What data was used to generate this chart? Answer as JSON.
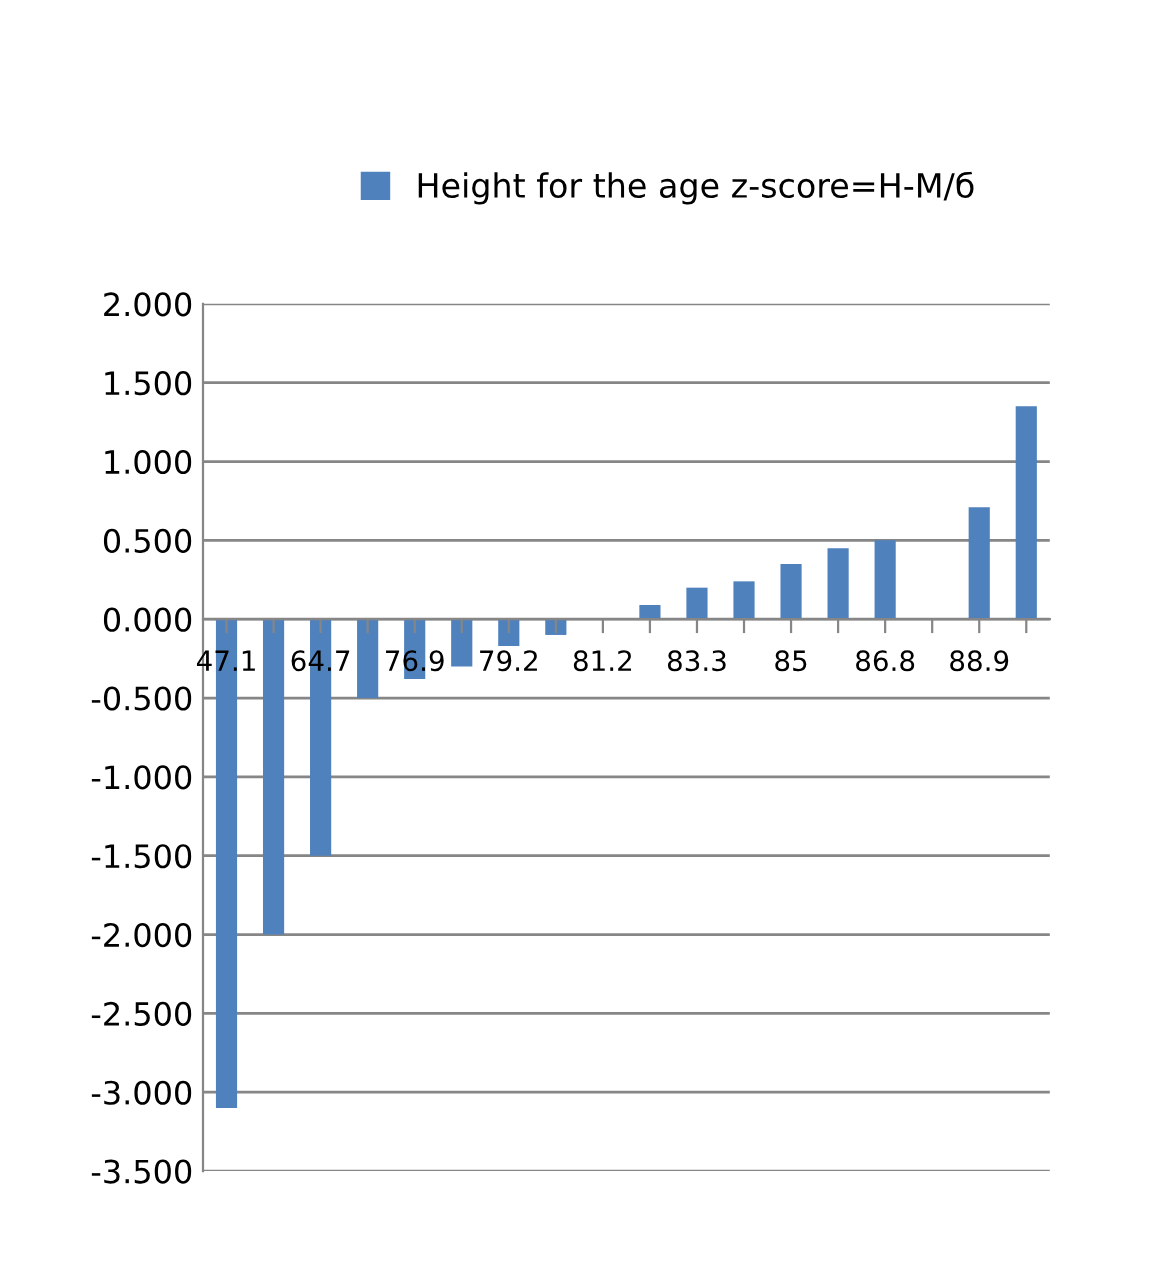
{
  "chart_data": {
    "type": "bar",
    "categories": [
      "47.1",
      null,
      "64.7",
      null,
      "76.9",
      null,
      "79.2",
      null,
      "81.2",
      null,
      "83.3",
      null,
      "85",
      null,
      "86.8",
      null,
      "88.9",
      null
    ],
    "series": [
      {
        "name": "Height for the age z-score=H-M/б",
        "color": "#4f81bd",
        "values": [
          -3.1,
          -2.0,
          -1.5,
          -0.5,
          -0.38,
          -0.3,
          -0.17,
          -0.1,
          0,
          0.09,
          0.2,
          0.24,
          0.35,
          0.45,
          0.5,
          0,
          0.71,
          1.35
        ]
      }
    ],
    "ylim": [
      -3.5,
      2.0
    ],
    "yticks": [
      {
        "value": -3.5,
        "label": "-3.500"
      },
      {
        "value": -3.0,
        "label": "-3.000"
      },
      {
        "value": -2.5,
        "label": "-2.500"
      },
      {
        "value": -2.0,
        "label": "-2.000"
      },
      {
        "value": -1.5,
        "label": "-1.500"
      },
      {
        "value": -1.0,
        "label": "-1.000"
      },
      {
        "value": -0.5,
        "label": "-0.500"
      },
      {
        "value": 0,
        "label": "0.000"
      },
      {
        "value": 0.5,
        "label": "0.500"
      },
      {
        "value": 1.0,
        "label": "1.000"
      },
      {
        "value": 1.5,
        "label": "1.500"
      },
      {
        "value": 2.0,
        "label": "2.000"
      }
    ],
    "grid": "y",
    "legend": "top"
  }
}
